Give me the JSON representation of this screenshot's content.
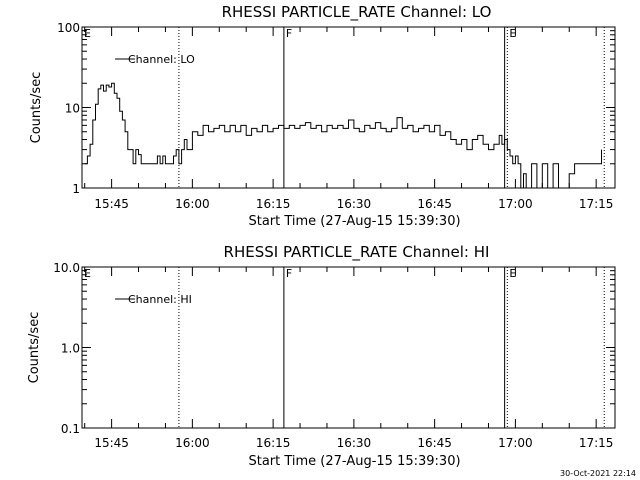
{
  "chart_data": [
    {
      "type": "line",
      "title": "RHESSI PARTICLE_RATE Channel: LO",
      "xlabel": "Start Time (27-Aug-15 15:39:30)",
      "ylabel": "Counts/sec",
      "y_scale": "log",
      "ylim": [
        1,
        100
      ],
      "xlim": [
        "15:39:30",
        "17:18:30"
      ],
      "x_ticks": [
        "15:45",
        "16:00",
        "16:15",
        "16:30",
        "16:45",
        "17:00",
        "17:15"
      ],
      "y_ticks": [
        "1",
        "10",
        "100"
      ],
      "legend": {
        "entries": [
          "Channel: LO"
        ],
        "placement": "top-left"
      },
      "grid": false,
      "markers": [
        {
          "label": "E",
          "time": "15:39:30",
          "style": "solid"
        },
        {
          "label": "",
          "time": "15:57:30",
          "style": "dotted"
        },
        {
          "label": "F",
          "time": "16:17:00",
          "style": "solid"
        },
        {
          "label": "",
          "time": "16:58:00",
          "style": "solid"
        },
        {
          "label": "E",
          "time": "16:58:30",
          "style": "dotted"
        },
        {
          "label": "",
          "time": "17:16:30",
          "style": "dotted"
        }
      ],
      "series": [
        {
          "name": "Channel: LO",
          "x": [
            "15:40:00",
            "15:40:30",
            "15:41:00",
            "15:41:30",
            "15:42:00",
            "15:42:30",
            "15:43:00",
            "15:43:30",
            "15:44:00",
            "15:44:30",
            "15:45:00",
            "15:45:30",
            "15:46:00",
            "15:46:30",
            "15:47:00",
            "15:47:30",
            "15:48:00",
            "15:48:30",
            "15:49:00",
            "15:49:30",
            "15:50:00",
            "15:50:30",
            "15:51:00",
            "15:51:30",
            "15:52:00",
            "15:52:30",
            "15:53:00",
            "15:53:30",
            "15:54:00",
            "15:54:30",
            "15:55:00",
            "15:55:30",
            "15:56:00",
            "15:56:30",
            "15:57:00",
            "15:57:30",
            "15:58:00",
            "15:58:30",
            "15:59:00",
            "16:00:00",
            "16:01:00",
            "16:02:00",
            "16:03:00",
            "16:04:00",
            "16:05:00",
            "16:06:00",
            "16:07:00",
            "16:08:00",
            "16:09:00",
            "16:10:00",
            "16:11:00",
            "16:12:00",
            "16:13:00",
            "16:14:00",
            "16:15:00",
            "16:16:00",
            "16:17:00",
            "16:18:00",
            "16:19:00",
            "16:20:00",
            "16:21:00",
            "16:22:00",
            "16:23:00",
            "16:24:00",
            "16:25:00",
            "16:26:00",
            "16:27:00",
            "16:28:00",
            "16:29:00",
            "16:30:00",
            "16:31:00",
            "16:32:00",
            "16:33:00",
            "16:34:00",
            "16:35:00",
            "16:36:00",
            "16:37:00",
            "16:38:00",
            "16:39:00",
            "16:40:00",
            "16:41:00",
            "16:42:00",
            "16:43:00",
            "16:44:00",
            "16:45:00",
            "16:46:00",
            "16:47:00",
            "16:48:00",
            "16:49:00",
            "16:50:00",
            "16:51:00",
            "16:52:00",
            "16:53:00",
            "16:54:00",
            "16:55:00",
            "16:56:00",
            "16:57:00",
            "16:57:30",
            "16:58:00",
            "16:58:30",
            "16:59:00",
            "16:59:30",
            "17:00:00",
            "17:00:30",
            "17:01:00",
            "17:01:30",
            "17:02:00",
            "17:03:00",
            "17:04:00",
            "17:05:00",
            "17:06:00",
            "17:07:00",
            "17:08:00",
            "17:09:00",
            "17:10:00",
            "17:11:00",
            "17:12:00",
            "17:13:00",
            "17:14:00",
            "17:15:00",
            "17:16:00"
          ],
          "y": [
            2,
            2.5,
            3.5,
            7,
            11,
            17,
            19,
            16,
            19,
            18,
            20,
            15,
            13,
            9,
            7,
            5,
            3,
            3,
            2,
            3,
            2.6,
            2,
            2,
            2,
            2,
            2,
            2,
            2.5,
            2,
            2.5,
            2,
            2,
            2,
            2.5,
            3,
            2,
            3,
            4,
            3,
            5,
            4.5,
            6,
            5,
            5.5,
            6,
            5,
            6,
            5,
            6,
            4.5,
            5.5,
            5,
            6,
            5,
            5.5,
            6,
            5.5,
            6,
            5.5,
            6,
            6.5,
            5.5,
            6,
            5,
            6,
            5.5,
            6,
            5.5,
            7,
            5.5,
            5,
            6,
            5.5,
            6.5,
            5.5,
            5,
            5.5,
            7.5,
            5.5,
            6,
            5,
            5.5,
            6,
            5,
            6,
            4.5,
            5,
            4,
            3.5,
            4,
            3,
            4,
            4.5,
            3.5,
            3,
            3.5,
            4.5,
            3.5,
            4,
            3,
            2.5,
            2,
            2.5,
            2,
            1,
            1.5,
            1,
            2,
            1,
            2,
            1,
            2,
            1,
            1,
            1.5,
            2,
            2,
            2,
            2,
            2,
            3
          ]
        }
      ]
    },
    {
      "type": "line",
      "title": "RHESSI PARTICLE_RATE Channel: HI",
      "xlabel": "Start Time (27-Aug-15 15:39:30)",
      "ylabel": "Counts/sec",
      "y_scale": "log",
      "ylim": [
        0.1,
        10
      ],
      "xlim": [
        "15:39:30",
        "17:18:30"
      ],
      "x_ticks": [
        "15:45",
        "16:00",
        "16:15",
        "16:30",
        "16:45",
        "17:00",
        "17:15"
      ],
      "y_ticks": [
        "0.1",
        "1.0",
        "10.0"
      ],
      "legend": {
        "entries": [
          "Channel: HI"
        ],
        "placement": "top-left"
      },
      "grid": false,
      "markers": [
        {
          "label": "E",
          "time": "15:39:30",
          "style": "solid"
        },
        {
          "label": "",
          "time": "15:57:30",
          "style": "dotted"
        },
        {
          "label": "F",
          "time": "16:17:00",
          "style": "solid"
        },
        {
          "label": "",
          "time": "16:58:00",
          "style": "solid"
        },
        {
          "label": "E",
          "time": "16:58:30",
          "style": "dotted"
        },
        {
          "label": "",
          "time": "17:16:30",
          "style": "dotted"
        }
      ],
      "series": [
        {
          "name": "Channel: HI",
          "x": [],
          "y": []
        }
      ]
    }
  ],
  "footer": {
    "timestamp": "30-Oct-2021 22:14"
  }
}
